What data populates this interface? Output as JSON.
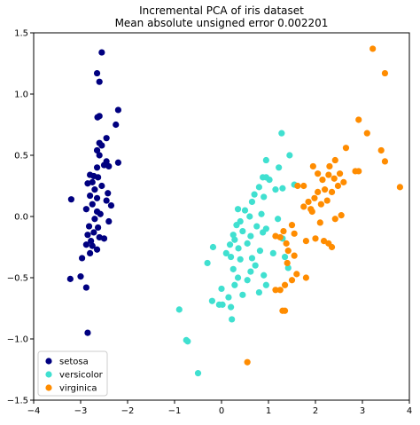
{
  "chart_data": {
    "type": "scatter",
    "title": "Incremental PCA of iris dataset",
    "subtitle": "Mean absolute unsigned error 0.002201",
    "xlabel": "",
    "ylabel": "",
    "xlim": [
      -4,
      4
    ],
    "ylim": [
      -1.5,
      1.5
    ],
    "x_ticks": [
      -4,
      -3,
      -2,
      -1,
      0,
      1,
      2,
      3,
      4
    ],
    "y_ticks": [
      -1.5,
      -1.0,
      -0.5,
      0.0,
      0.5,
      1.0,
      1.5
    ],
    "x_tick_labels": [
      "−4",
      "−3",
      "−2",
      "−1",
      "0",
      "1",
      "2",
      "3",
      "4"
    ],
    "y_tick_labels": [
      "−1.5",
      "−1.0",
      "−0.5",
      "0.0",
      "0.5",
      "1.0",
      "1.5"
    ],
    "grid": false,
    "legend_position": "lower-left",
    "series": [
      {
        "name": "setosa",
        "color": "#000080",
        "points": [
          [
            -2.55,
            1.34
          ],
          [
            -2.65,
            1.17
          ],
          [
            -2.6,
            1.1
          ],
          [
            -2.2,
            0.87
          ],
          [
            -2.6,
            0.82
          ],
          [
            -2.64,
            0.81
          ],
          [
            -2.25,
            0.75
          ],
          [
            -2.45,
            0.64
          ],
          [
            -2.6,
            0.6
          ],
          [
            -2.55,
            0.58
          ],
          [
            -2.65,
            0.54
          ],
          [
            -2.6,
            0.5
          ],
          [
            -2.45,
            0.45
          ],
          [
            -2.2,
            0.44
          ],
          [
            -2.5,
            0.42
          ],
          [
            -2.4,
            0.41
          ],
          [
            -2.65,
            0.4
          ],
          [
            -2.8,
            0.34
          ],
          [
            -2.72,
            0.33
          ],
          [
            -2.63,
            0.32
          ],
          [
            -2.75,
            0.28
          ],
          [
            -2.85,
            0.27
          ],
          [
            -2.55,
            0.25
          ],
          [
            -2.7,
            0.22
          ],
          [
            -2.42,
            0.19
          ],
          [
            -2.8,
            0.17
          ],
          [
            -2.65,
            0.15
          ],
          [
            -3.2,
            0.14
          ],
          [
            -2.45,
            0.13
          ],
          [
            -2.75,
            0.1
          ],
          [
            -2.35,
            0.09
          ],
          [
            -2.88,
            0.06
          ],
          [
            -2.65,
            0.04
          ],
          [
            -2.58,
            0.02
          ],
          [
            -2.7,
            -0.02
          ],
          [
            -2.4,
            -0.04
          ],
          [
            -2.82,
            -0.08
          ],
          [
            -2.63,
            -0.09
          ],
          [
            -2.72,
            -0.13
          ],
          [
            -2.85,
            -0.15
          ],
          [
            -2.6,
            -0.17
          ],
          [
            -2.5,
            -0.18
          ],
          [
            -2.78,
            -0.2
          ],
          [
            -2.88,
            -0.23
          ],
          [
            -2.75,
            -0.24
          ],
          [
            -2.65,
            -0.27
          ],
          [
            -2.8,
            -0.3
          ],
          [
            -2.97,
            -0.34
          ],
          [
            -3.0,
            -0.49
          ],
          [
            -3.22,
            -0.51
          ],
          [
            -2.88,
            -0.58
          ],
          [
            -2.85,
            -0.95
          ]
        ]
      },
      {
        "name": "versicolor",
        "color": "#40e0d0",
        "points": [
          [
            1.28,
            0.68
          ],
          [
            1.45,
            0.5
          ],
          [
            0.95,
            0.46
          ],
          [
            1.22,
            0.4
          ],
          [
            0.88,
            0.32
          ],
          [
            0.95,
            0.32
          ],
          [
            1.02,
            0.3
          ],
          [
            0.8,
            0.24
          ],
          [
            1.55,
            0.26
          ],
          [
            1.3,
            0.23
          ],
          [
            1.15,
            0.22
          ],
          [
            0.7,
            0.18
          ],
          [
            0.9,
            0.16
          ],
          [
            0.65,
            0.12
          ],
          [
            0.35,
            0.06
          ],
          [
            0.5,
            0.05
          ],
          [
            0.85,
            0.02
          ],
          [
            0.6,
            0.0
          ],
          [
            1.2,
            -0.02
          ],
          [
            0.4,
            -0.04
          ],
          [
            0.32,
            -0.07
          ],
          [
            0.75,
            -0.08
          ],
          [
            0.95,
            -0.1
          ],
          [
            0.45,
            -0.12
          ],
          [
            0.88,
            -0.13
          ],
          [
            0.25,
            -0.15
          ],
          [
            0.62,
            -0.16
          ],
          [
            1.3,
            -0.18
          ],
          [
            0.28,
            -0.19
          ],
          [
            0.55,
            -0.22
          ],
          [
            0.18,
            -0.23
          ],
          [
            -0.18,
            -0.25
          ],
          [
            0.36,
            -0.26
          ],
          [
            0.82,
            -0.28
          ],
          [
            1.1,
            -0.3
          ],
          [
            0.1,
            -0.3
          ],
          [
            0.2,
            -0.33
          ],
          [
            1.35,
            -0.33
          ],
          [
            0.65,
            -0.34
          ],
          [
            0.4,
            -0.35
          ],
          [
            -0.3,
            -0.38
          ],
          [
            0.72,
            -0.4
          ],
          [
            1.42,
            -0.42
          ],
          [
            0.25,
            -0.43
          ],
          [
            0.62,
            -0.45
          ],
          [
            0.9,
            -0.48
          ],
          [
            0.35,
            -0.5
          ],
          [
            0.55,
            -0.52
          ],
          [
            0.95,
            -0.56
          ],
          [
            0.28,
            -0.56
          ],
          [
            0.0,
            -0.59
          ],
          [
            0.8,
            -0.62
          ],
          [
            0.45,
            -0.64
          ],
          [
            0.15,
            -0.66
          ],
          [
            -0.2,
            -0.69
          ],
          [
            -0.05,
            -0.72
          ],
          [
            0.02,
            -0.72
          ],
          [
            0.2,
            -0.74
          ],
          [
            0.22,
            -0.84
          ],
          [
            -0.9,
            -0.76
          ],
          [
            -0.75,
            -1.01
          ],
          [
            -0.72,
            -1.02
          ],
          [
            -0.5,
            -1.28
          ]
        ]
      },
      {
        "name": "virginica",
        "color": "#ff8c00",
        "points": [
          [
            3.22,
            1.37
          ],
          [
            3.48,
            1.17
          ],
          [
            2.92,
            0.79
          ],
          [
            3.1,
            0.68
          ],
          [
            2.65,
            0.56
          ],
          [
            3.4,
            0.54
          ],
          [
            3.48,
            0.45
          ],
          [
            2.42,
            0.46
          ],
          [
            1.95,
            0.41
          ],
          [
            2.3,
            0.41
          ],
          [
            2.92,
            0.37
          ],
          [
            2.85,
            0.37
          ],
          [
            2.05,
            0.35
          ],
          [
            2.52,
            0.35
          ],
          [
            2.28,
            0.34
          ],
          [
            2.4,
            0.31
          ],
          [
            2.15,
            0.3
          ],
          [
            2.6,
            0.28
          ],
          [
            2.48,
            0.25
          ],
          [
            1.75,
            0.25
          ],
          [
            1.62,
            0.25
          ],
          [
            3.8,
            0.24
          ],
          [
            2.2,
            0.22
          ],
          [
            2.05,
            0.2
          ],
          [
            2.35,
            0.2
          ],
          [
            1.98,
            0.15
          ],
          [
            2.25,
            0.13
          ],
          [
            1.85,
            0.12
          ],
          [
            2.12,
            0.1
          ],
          [
            1.75,
            0.08
          ],
          [
            1.9,
            0.06
          ],
          [
            1.93,
            0.04
          ],
          [
            2.55,
            0.01
          ],
          [
            2.42,
            -0.02
          ],
          [
            2.1,
            -0.05
          ],
          [
            1.5,
            -0.07
          ],
          [
            1.32,
            -0.12
          ],
          [
            1.55,
            -0.14
          ],
          [
            1.15,
            -0.16
          ],
          [
            1.25,
            -0.17
          ],
          [
            2.0,
            -0.18
          ],
          [
            1.8,
            -0.2
          ],
          [
            2.18,
            -0.2
          ],
          [
            2.28,
            -0.22
          ],
          [
            1.38,
            -0.22
          ],
          [
            2.35,
            -0.25
          ],
          [
            1.42,
            -0.28
          ],
          [
            1.55,
            -0.32
          ],
          [
            1.4,
            -0.38
          ],
          [
            1.6,
            -0.47
          ],
          [
            1.8,
            -0.5
          ],
          [
            1.5,
            -0.52
          ],
          [
            1.35,
            -0.56
          ],
          [
            1.15,
            -0.6
          ],
          [
            1.25,
            -0.6
          ],
          [
            1.3,
            -0.77
          ],
          [
            1.35,
            -0.77
          ],
          [
            0.55,
            -1.19
          ]
        ]
      }
    ]
  }
}
